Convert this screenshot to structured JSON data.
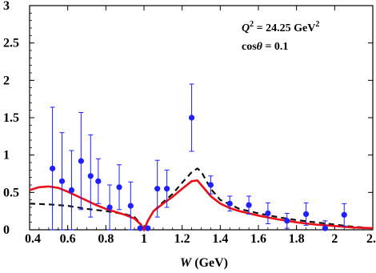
{
  "chart_data": {
    "type": "scatter",
    "title": "",
    "xlabel": "W",
    "xunit": " (GeV)",
    "ylabel": "",
    "xlim": [
      0.4,
      2.2
    ],
    "ylim": [
      0,
      3
    ],
    "x_ticks": [
      0.4,
      0.6,
      0.8,
      1.0,
      1.2,
      1.4,
      1.6,
      1.8,
      2.0,
      2.2
    ],
    "x_tick_labels": [
      "0.4",
      "0.6",
      "0.8",
      "1",
      "1.2",
      "1.4",
      "1.6",
      "1.8",
      "2",
      "2."
    ],
    "y_ticks": [
      0,
      0.5,
      1.0,
      1.5,
      2.0,
      2.5,
      3.0
    ],
    "y_tick_labels": [
      "0",
      "0.5",
      "1",
      "1.5",
      "2",
      "2.5",
      "3"
    ],
    "grid": false,
    "annotations": {
      "q2_symbol": "Q",
      "q2_sup": "2",
      "q2_value": " = 24.25 GeV",
      "q2_unit_sup": "2",
      "cos_prefix": "cos",
      "cos_theta": "θ",
      "cos_value": " = 0.1"
    },
    "data_points": {
      "color": "#1f1fff",
      "x": [
        0.52,
        0.57,
        0.62,
        0.67,
        0.72,
        0.76,
        0.82,
        0.87,
        0.93,
        0.98,
        1.02,
        1.07,
        1.12,
        1.25,
        1.35,
        1.45,
        1.55,
        1.65,
        1.75,
        1.85,
        1.95,
        2.05
      ],
      "y": [
        0.82,
        0.65,
        0.53,
        0.92,
        0.72,
        0.65,
        0.3,
        0.57,
        0.32,
        0.02,
        0.02,
        0.55,
        0.55,
        1.5,
        0.6,
        0.35,
        0.33,
        0.22,
        0.12,
        0.21,
        0.02,
        0.2
      ],
      "err": [
        0.82,
        0.65,
        0.53,
        0.65,
        0.55,
        0.3,
        0.3,
        0.3,
        0.32,
        0.02,
        0.02,
        0.38,
        0.25,
        0.45,
        0.12,
        0.1,
        0.12,
        0.14,
        0.1,
        0.15,
        0.1,
        0.15
      ]
    },
    "solid_curve": {
      "color": "#e8111a",
      "x": [
        0.4,
        0.45,
        0.5,
        0.55,
        0.6,
        0.65,
        0.7,
        0.75,
        0.8,
        0.85,
        0.9,
        0.95,
        0.98,
        1.0,
        1.02,
        1.05,
        1.1,
        1.15,
        1.2,
        1.25,
        1.28,
        1.3,
        1.35,
        1.4,
        1.45,
        1.5,
        1.55,
        1.6,
        1.7,
        1.8,
        1.9,
        2.0,
        2.1,
        2.2
      ],
      "y": [
        0.53,
        0.57,
        0.58,
        0.56,
        0.51,
        0.45,
        0.39,
        0.33,
        0.28,
        0.24,
        0.2,
        0.15,
        0.08,
        0.0,
        0.12,
        0.25,
        0.35,
        0.44,
        0.55,
        0.65,
        0.66,
        0.6,
        0.45,
        0.35,
        0.29,
        0.25,
        0.22,
        0.19,
        0.14,
        0.1,
        0.07,
        0.05,
        0.03,
        0.02
      ]
    },
    "dashed_curve": {
      "color": "#111111",
      "x": [
        0.4,
        0.5,
        0.6,
        0.7,
        0.8,
        0.9,
        0.95,
        0.98,
        1.0,
        1.02,
        1.05,
        1.1,
        1.15,
        1.2,
        1.25,
        1.28,
        1.3,
        1.35,
        1.4,
        1.5,
        1.6,
        1.7,
        1.8,
        1.9,
        2.0,
        2.1,
        2.2
      ],
      "y": [
        0.35,
        0.34,
        0.32,
        0.28,
        0.25,
        0.21,
        0.17,
        0.09,
        0.0,
        0.12,
        0.25,
        0.37,
        0.48,
        0.63,
        0.77,
        0.82,
        0.78,
        0.55,
        0.4,
        0.28,
        0.22,
        0.17,
        0.13,
        0.1,
        0.07,
        0.04,
        0.02
      ]
    }
  }
}
